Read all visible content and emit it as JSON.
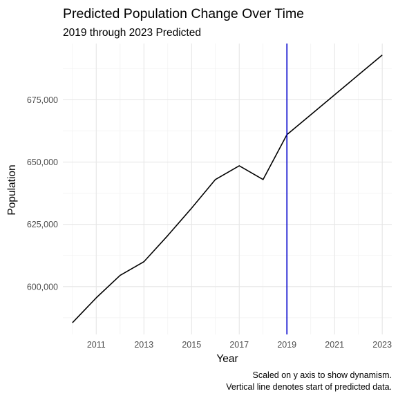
{
  "chart_data": {
    "type": "line",
    "title": "Predicted Population Change Over Time",
    "subtitle": "2019 through 2023 Predicted",
    "xlabel": "Year",
    "ylabel": "Population",
    "caption_lines": [
      "Scaled on y axis to show dynamism.",
      "Vertical line denotes start of predicted data."
    ],
    "x": [
      2010,
      2011,
      2012,
      2013,
      2014,
      2015,
      2016,
      2017,
      2018,
      2019,
      2020,
      2021,
      2022,
      2023
    ],
    "series": [
      {
        "values": [
          585500,
          595500,
          604500,
          610000,
          620500,
          631500,
          643000,
          648500,
          643000,
          661000,
          669000,
          677000,
          685000,
          693000
        ]
      }
    ],
    "xlim": [
      2009.6,
      2023.4
    ],
    "ylim": [
      580800,
      697600
    ],
    "x_ticks": [
      2011,
      2013,
      2015,
      2017,
      2019,
      2021,
      2023
    ],
    "x_tick_labels": [
      "2011",
      "2013",
      "2015",
      "2017",
      "2019",
      "2021",
      "2023"
    ],
    "y_ticks": [
      600000,
      625000,
      650000,
      675000
    ],
    "y_tick_labels": [
      "600,000",
      "625,000",
      "650,000",
      "675,000"
    ],
    "vline": {
      "x": 2019,
      "color": "#0000cc"
    },
    "line_color": "#000000",
    "grid": true,
    "theme": "minimal"
  }
}
